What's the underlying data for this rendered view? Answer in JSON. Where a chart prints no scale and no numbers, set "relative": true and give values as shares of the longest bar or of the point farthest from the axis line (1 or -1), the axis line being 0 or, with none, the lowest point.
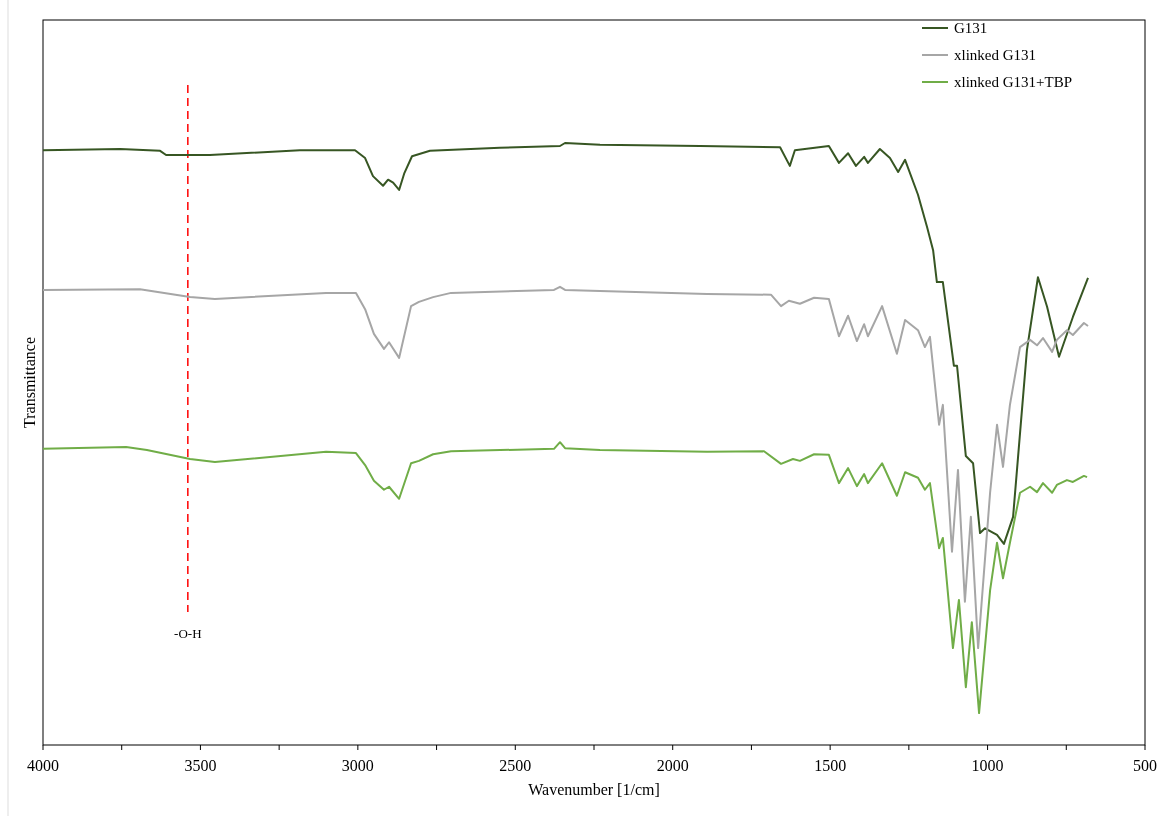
{
  "chart_data": {
    "type": "line",
    "xlabel": "Wavenumber [1/cm]",
    "ylabel": "Transmittance",
    "relative": true,
    "xlim": [
      4000,
      500
    ],
    "xticks": [
      4000,
      {
        "value": 3750,
        "label": null
      },
      3500,
      {
        "value": 3250,
        "label": null
      },
      3000,
      {
        "value": 2750,
        "label": null
      },
      2500,
      {
        "value": 2250,
        "label": null
      },
      2000,
      {
        "value": 1750,
        "label": null
      },
      1500,
      {
        "value": 1250,
        "label": null
      },
      1000,
      {
        "value": 750,
        "label": null
      },
      500
    ],
    "legend": "top right",
    "grid": false,
    "line_style": "solid",
    "ref_lines": [
      {
        "axis": "x",
        "value": 3540,
        "label": "-O-H",
        "color": "#ff0000",
        "line_style": "dashed"
      }
    ],
    "series": [
      {
        "name": "G131",
        "color": "#375623",
        "x": [
          4000,
          3755,
          3628,
          3609,
          3470,
          3184,
          3009,
          2977,
          2952,
          2920,
          2904,
          2888,
          2869,
          2853,
          2828,
          2771,
          2549,
          2358,
          2342,
          2231,
          1913,
          1659,
          1628,
          1612,
          1504,
          1472,
          1443,
          1418,
          1392,
          1380,
          1342,
          1310,
          1284,
          1262,
          1221,
          1192,
          1173,
          1161,
          1142,
          1107,
          1097,
          1069,
          1046,
          1024,
          1008,
          970,
          948,
          919,
          875,
          840,
          811,
          773,
          729,
          681
        ],
        "values": [
          0.988,
          0.99,
          0.987,
          0.98,
          0.98,
          0.988,
          0.988,
          0.975,
          0.945,
          0.929,
          0.939,
          0.934,
          0.922,
          0.949,
          0.978,
          0.987,
          0.992,
          0.995,
          1.0,
          0.997,
          0.995,
          0.993,
          0.962,
          0.988,
          0.995,
          0.967,
          0.983,
          0.962,
          0.977,
          0.967,
          0.99,
          0.975,
          0.952,
          0.972,
          0.914,
          0.86,
          0.822,
          0.769,
          0.769,
          0.63,
          0.63,
          0.48,
          0.468,
          0.352,
          0.36,
          0.349,
          0.334,
          0.379,
          0.656,
          0.777,
          0.728,
          0.645,
          0.711,
          0.776
        ]
      },
      {
        "name": "xlinked G131",
        "color": "#a6a6a6",
        "x": [
          4000,
          3692,
          3533,
          3454,
          3101,
          3006,
          2977,
          2949,
          2917,
          2901,
          2869,
          2831,
          2806,
          2761,
          2704,
          2377,
          2358,
          2342,
          2231,
          1891,
          1688,
          1656,
          1631,
          1596,
          1551,
          1504,
          1472,
          1443,
          1415,
          1392,
          1380,
          1335,
          1288,
          1262,
          1221,
          1199,
          1183,
          1154,
          1142,
          1113,
          1094,
          1072,
          1053,
          1030,
          992,
          970,
          951,
          929,
          897,
          865,
          843,
          824,
          795,
          780,
          748,
          729,
          694,
          681
        ],
        "values": [
          0.756,
          0.757,
          0.744,
          0.741,
          0.751,
          0.751,
          0.724,
          0.683,
          0.658,
          0.669,
          0.643,
          0.729,
          0.736,
          0.744,
          0.751,
          0.756,
          0.761,
          0.756,
          0.754,
          0.749,
          0.748,
          0.729,
          0.738,
          0.733,
          0.743,
          0.741,
          0.679,
          0.713,
          0.671,
          0.699,
          0.679,
          0.729,
          0.65,
          0.706,
          0.689,
          0.661,
          0.678,
          0.532,
          0.565,
          0.321,
          0.457,
          0.238,
          0.379,
          0.161,
          0.419,
          0.532,
          0.462,
          0.565,
          0.661,
          0.673,
          0.664,
          0.676,
          0.653,
          0.673,
          0.689,
          0.681,
          0.701,
          0.696
        ]
      },
      {
        "name": "xlinked G131+TBP",
        "color": "#70ad47",
        "x": [
          4000,
          3736,
          3670,
          3533,
          3454,
          3101,
          3006,
          2977,
          2949,
          2917,
          2901,
          2869,
          2831,
          2806,
          2761,
          2704,
          2377,
          2358,
          2342,
          2231,
          1891,
          1710,
          1656,
          1618,
          1596,
          1551,
          1504,
          1472,
          1443,
          1415,
          1392,
          1380,
          1335,
          1288,
          1262,
          1221,
          1199,
          1183,
          1154,
          1142,
          1110,
          1091,
          1069,
          1050,
          1027,
          992,
          970,
          951,
          929,
          897,
          865,
          843,
          824,
          795,
          780,
          748,
          729,
          694,
          684
        ],
        "values": [
          0.492,
          0.495,
          0.49,
          0.475,
          0.47,
          0.487,
          0.485,
          0.465,
          0.439,
          0.424,
          0.429,
          0.409,
          0.468,
          0.472,
          0.483,
          0.488,
          0.492,
          0.503,
          0.493,
          0.49,
          0.487,
          0.488,
          0.467,
          0.475,
          0.472,
          0.483,
          0.482,
          0.435,
          0.46,
          0.43,
          0.45,
          0.435,
          0.468,
          0.414,
          0.453,
          0.444,
          0.424,
          0.435,
          0.327,
          0.344,
          0.161,
          0.241,
          0.096,
          0.204,
          0.053,
          0.257,
          0.336,
          0.277,
          0.336,
          0.419,
          0.429,
          0.42,
          0.435,
          0.419,
          0.432,
          0.44,
          0.437,
          0.447,
          0.445
        ]
      }
    ]
  }
}
